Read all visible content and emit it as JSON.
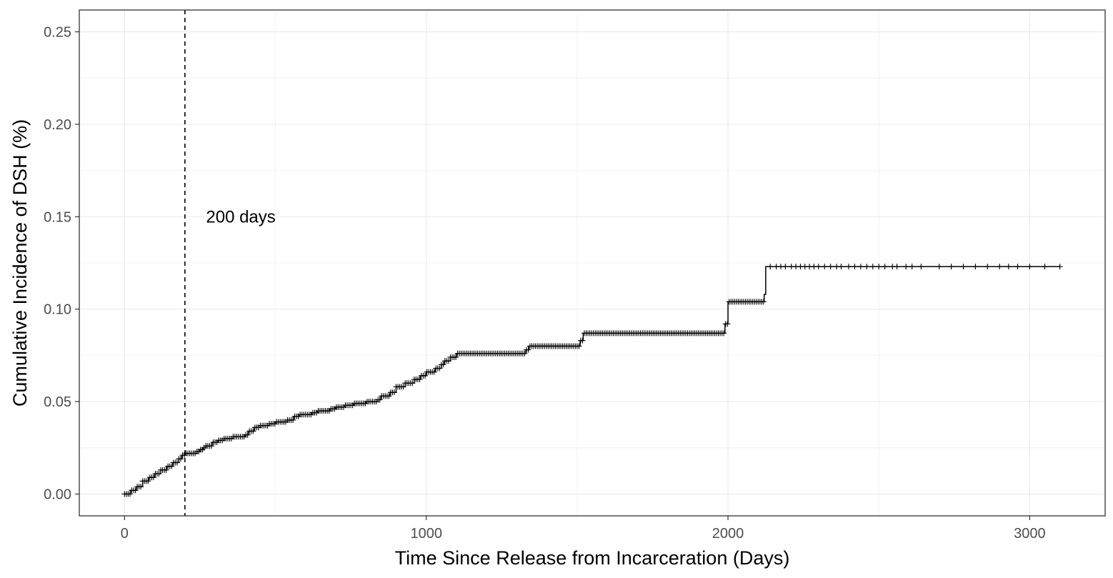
{
  "chart_data": {
    "type": "line",
    "title": "",
    "xlabel": "Time Since Release from Incarceration (Days)",
    "ylabel": "Cumulative Incidence of DSH (%)",
    "xlim": [
      -150,
      3250
    ],
    "ylim": [
      -0.0118,
      0.2618
    ],
    "x_ticks": [
      0,
      1000,
      2000,
      3000
    ],
    "x_tick_labels": [
      "0",
      "1000",
      "2000",
      "3000"
    ],
    "y_ticks": [
      0.0,
      0.05,
      0.1,
      0.15,
      0.2,
      0.25
    ],
    "y_tick_labels": [
      "0.00",
      "0.05",
      "0.10",
      "0.15",
      "0.20",
      "0.25"
    ],
    "grid": true,
    "legend": "none",
    "colors": {
      "line": "#000000",
      "grid": "#ebebeb",
      "panel_border": "#333333",
      "tick_text": "#4d4d4d"
    },
    "reference_line": {
      "x": 200,
      "style": "dashed",
      "label": "200 days",
      "label_at": [
        270,
        0.15
      ]
    },
    "series": [
      {
        "step_points": [
          [
            0,
            0.0
          ],
          [
            20,
            0.002
          ],
          [
            40,
            0.004
          ],
          [
            60,
            0.007
          ],
          [
            80,
            0.009
          ],
          [
            100,
            0.011
          ],
          [
            120,
            0.013
          ],
          [
            140,
            0.015
          ],
          [
            160,
            0.017
          ],
          [
            180,
            0.019
          ],
          [
            190,
            0.021
          ],
          [
            200,
            0.022
          ],
          [
            240,
            0.023
          ],
          [
            250,
            0.024
          ],
          [
            260,
            0.025
          ],
          [
            270,
            0.026
          ],
          [
            290,
            0.028
          ],
          [
            310,
            0.029
          ],
          [
            330,
            0.03
          ],
          [
            360,
            0.031
          ],
          [
            400,
            0.032
          ],
          [
            410,
            0.034
          ],
          [
            430,
            0.036
          ],
          [
            450,
            0.037
          ],
          [
            480,
            0.038
          ],
          [
            500,
            0.039
          ],
          [
            540,
            0.04
          ],
          [
            560,
            0.042
          ],
          [
            580,
            0.043
          ],
          [
            620,
            0.044
          ],
          [
            640,
            0.045
          ],
          [
            680,
            0.046
          ],
          [
            700,
            0.047
          ],
          [
            730,
            0.048
          ],
          [
            760,
            0.049
          ],
          [
            800,
            0.05
          ],
          [
            840,
            0.051
          ],
          [
            850,
            0.053
          ],
          [
            880,
            0.055
          ],
          [
            900,
            0.058
          ],
          [
            930,
            0.06
          ],
          [
            960,
            0.062
          ],
          [
            980,
            0.064
          ],
          [
            1000,
            0.066
          ],
          [
            1030,
            0.068
          ],
          [
            1050,
            0.07
          ],
          [
            1060,
            0.072
          ],
          [
            1080,
            0.074
          ],
          [
            1100,
            0.076
          ],
          [
            1330,
            0.078
          ],
          [
            1340,
            0.08
          ],
          [
            1510,
            0.083
          ],
          [
            1520,
            0.087
          ],
          [
            1990,
            0.092
          ],
          [
            2000,
            0.104
          ],
          [
            2120,
            0.108
          ],
          [
            2125,
            0.123
          ],
          [
            3100,
            0.123
          ]
        ],
        "censor_x": [
          2140,
          2160,
          2175,
          2190,
          2210,
          2225,
          2240,
          2255,
          2270,
          2285,
          2300,
          2320,
          2340,
          2360,
          2375,
          2400,
          2420,
          2440,
          2460,
          2480,
          2500,
          2520,
          2545,
          2560,
          2590,
          2610,
          2640,
          2700,
          2740,
          2780,
          2820,
          2860,
          2900,
          2930,
          2960,
          3000,
          3050,
          3100
        ]
      }
    ]
  }
}
